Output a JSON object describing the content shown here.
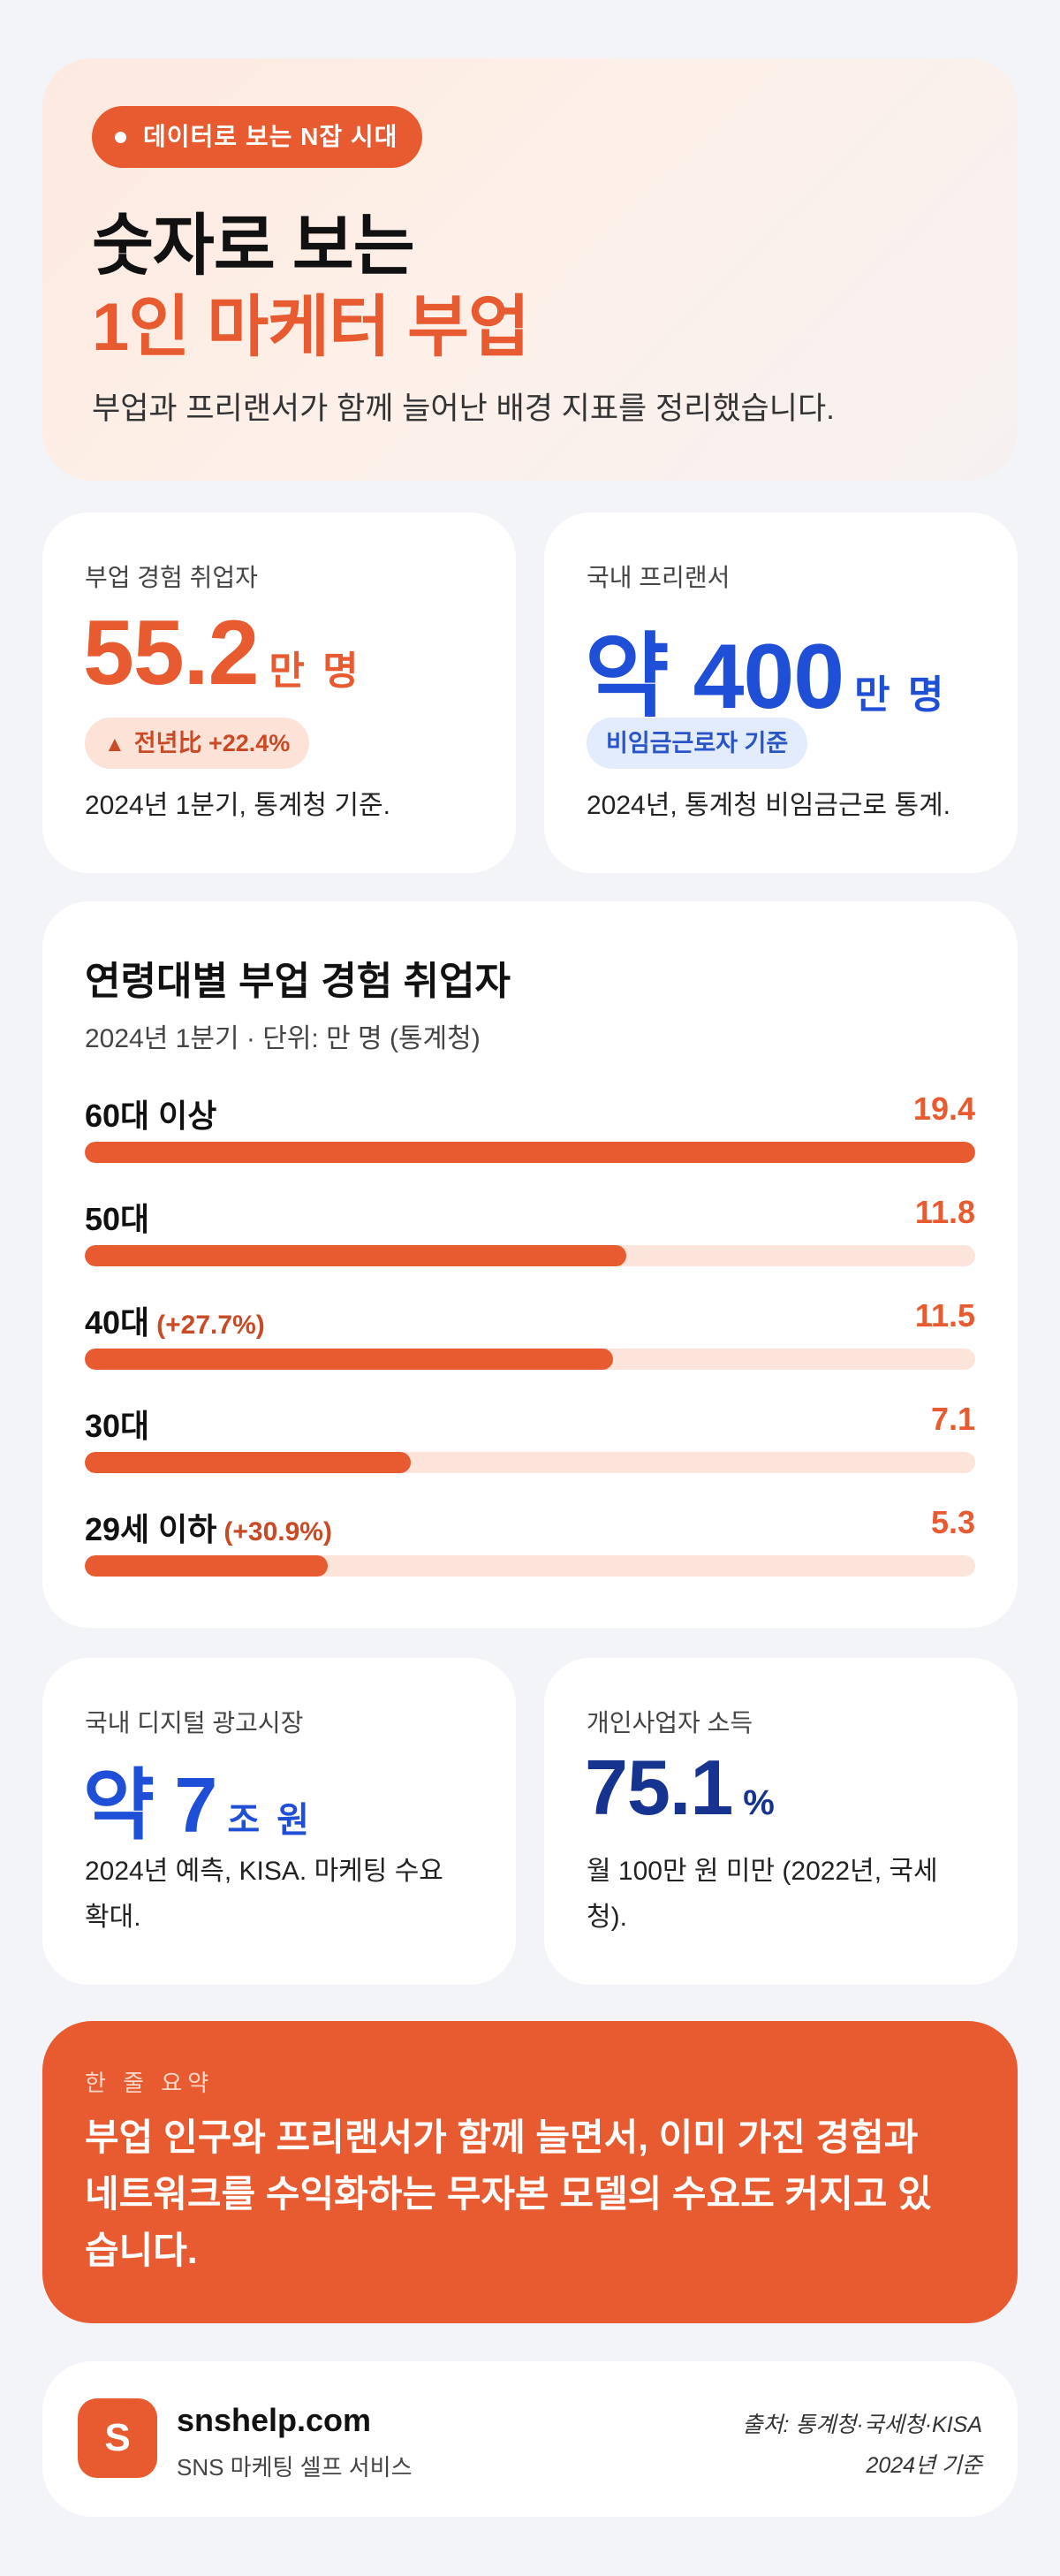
{
  "hero": {
    "pill": "데이터로 보는 N잡 시대",
    "title_line1": "숫자로 보는",
    "title_line2": "1인 마케터 부업",
    "subtitle": "부업과 프리랜서가 함께 늘어난 배경 지표를 정리했습니다."
  },
  "stats_top": [
    {
      "label": "부업 경험 취업자",
      "value": "55.2",
      "unit": "만 명",
      "badge": "전년比 +22.4%",
      "note": "2024년 1분기, 통계청 기준.",
      "color": "#e85a30"
    },
    {
      "label": "국내 프리랜서",
      "value": "약 400",
      "unit": "만 명",
      "badge": "비임금근로자 기준",
      "note": "2024년, 통계청 비임금근로 통계.",
      "color": "#1f4fd6"
    }
  ],
  "age_chart": {
    "title": "연령대별 부업 경험 취업자",
    "subtitle": "2024년 1분기 · 단위: 만 명 (통계청)",
    "max": 19.4,
    "rows": [
      {
        "label": "60대 이상",
        "change": "",
        "value": 19.4,
        "value_text": "19.4"
      },
      {
        "label": "50대",
        "change": "",
        "value": 11.8,
        "value_text": "11.8"
      },
      {
        "label": "40대",
        "change": "(+27.7%)",
        "value": 11.5,
        "value_text": "11.5"
      },
      {
        "label": "30대",
        "change": "",
        "value": 7.1,
        "value_text": "7.1"
      },
      {
        "label": "29세 이하",
        "change": "(+30.9%)",
        "value": 5.3,
        "value_text": "5.3"
      }
    ]
  },
  "stats_bottom": [
    {
      "label": "국내 디지털 광고시장",
      "value": "약 7",
      "unit": "조 원",
      "note_line1": "2024년 예측, KISA. 마케팅 수요",
      "note_line2": "확대.",
      "color": "#1f4fd6"
    },
    {
      "label": "개인사업자 소득",
      "value": "75.1",
      "unit": "%",
      "note_line1": "월 100만 원 미만 (2022년, 국세",
      "note_line2": "청).",
      "color": "#16338f"
    }
  ],
  "summary": {
    "label": "한 줄 요약",
    "line1": "부업 인구와 프리랜서가 함께 늘면서, 이미 가진 경험과",
    "line2": "네트워크를 수익화하는 무자본 모델의 수요도 커지고 있",
    "line3": "습니다."
  },
  "footer": {
    "logo_letter": "S",
    "brand": "snshelp.com",
    "brand_sub": "SNS 마케팅 셀프 서비스",
    "source_line1": "출처: 통계청·국세청·KISA",
    "source_line2": "2024년 기준"
  }
}
